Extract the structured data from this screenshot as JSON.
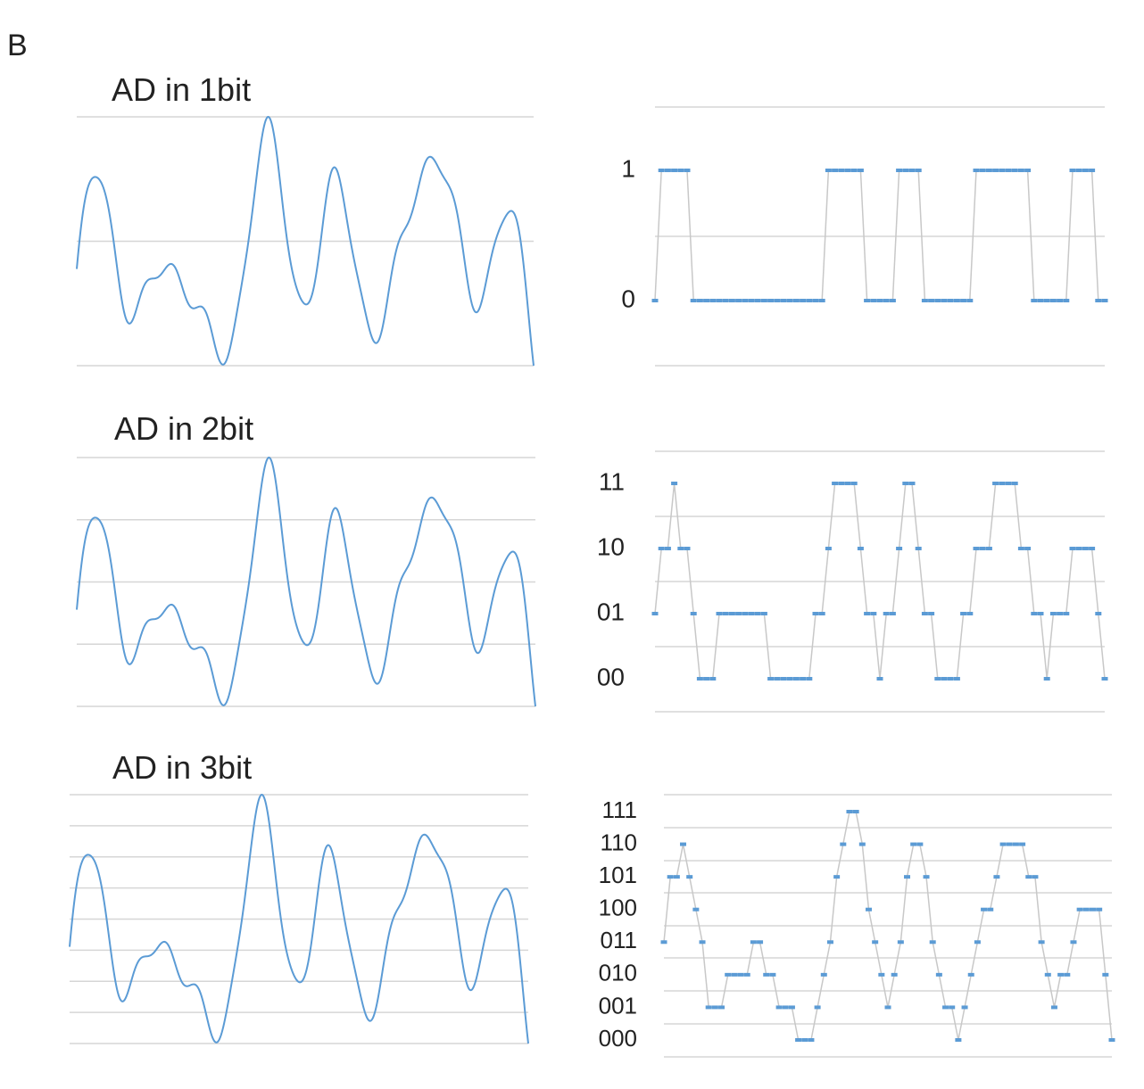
{
  "panel_label": "B",
  "chart_data": [
    {
      "type": "line",
      "title": "AD in 1bit",
      "series": [
        {
          "expression": "sin(2t)+0.72*sin(t)+0.5*sin(2.7t+0.3)-0.42*sin(t/3.2+1.1)+0.15*sin(5.2t+1)",
          "t_range": [
            0,
            17.5
          ]
        }
      ],
      "ylim": [
        -1,
        1
      ],
      "grid_levels": [
        -1,
        0,
        1
      ],
      "color": "#5b9bd5"
    },
    {
      "type": "line",
      "title": "",
      "yticks": [
        "0",
        "1"
      ],
      "levels": 2,
      "sample_count": 71,
      "marker_color": "#5b9bd5",
      "line_color": "#c8c8c8"
    },
    {
      "type": "line",
      "title": "AD in 2bit",
      "series": [
        {
          "expression": "sin(2t)+0.72*sin(t)+0.5*sin(2.7t+0.3)-0.42*sin(t/3.2+1.1)+0.15*sin(5.2t+1)",
          "t_range": [
            0,
            17.5
          ]
        }
      ],
      "ylim": [
        -1,
        1
      ],
      "grid_levels": [
        -1,
        -0.5,
        0,
        0.5,
        1
      ],
      "color": "#5b9bd5"
    },
    {
      "type": "line",
      "title": "",
      "yticks": [
        "00",
        "01",
        "10",
        "11"
      ],
      "levels": 4,
      "sample_count": 71,
      "marker_color": "#5b9bd5",
      "line_color": "#c8c8c8"
    },
    {
      "type": "line",
      "title": "AD in 3bit",
      "series": [
        {
          "expression": "sin(2t)+0.72*sin(t)+0.5*sin(2.7t+0.3)-0.42*sin(t/3.2+1.1)+0.15*sin(5.2t+1)",
          "t_range": [
            0,
            17.5
          ]
        }
      ],
      "ylim": [
        -1,
        1
      ],
      "grid_levels": [
        -1,
        -0.75,
        -0.5,
        -0.25,
        0,
        0.25,
        0.5,
        0.75,
        1
      ],
      "color": "#5b9bd5"
    },
    {
      "type": "line",
      "title": "",
      "yticks": [
        "000",
        "001",
        "010",
        "011",
        "100",
        "101",
        "110",
        "111"
      ],
      "levels": 8,
      "sample_count": 71,
      "marker_color": "#5b9bd5",
      "line_color": "#c8c8c8"
    }
  ]
}
